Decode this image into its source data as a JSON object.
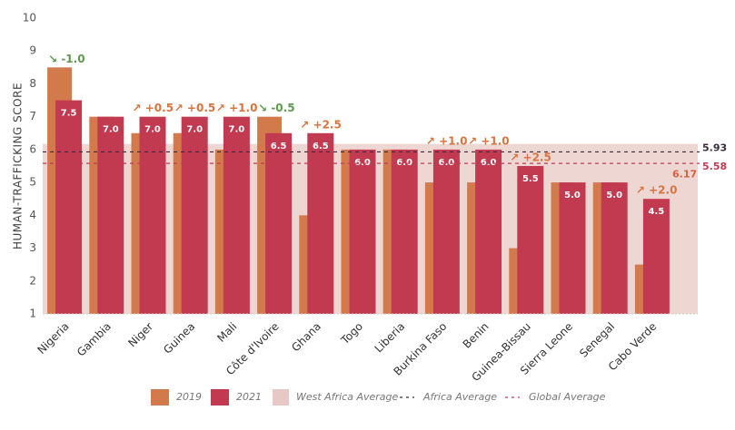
{
  "chart_data": {
    "type": "bar",
    "y_label": "HUMAN-TRAFFICKING SCORE",
    "categories": [
      "Nigeria",
      "Gambia",
      "Niger",
      "Guinea",
      "Mali",
      "Côte d'Ivoire",
      "Ghana",
      "Togo",
      "Liberia",
      "Burkina Faso",
      "Benin",
      "Guinea-Bissau",
      "Sierra Leone",
      "Senegal",
      "Cabo Verde"
    ],
    "series": [
      {
        "name": "2019",
        "color": "#d27a4c",
        "values": [
          8.5,
          7.0,
          6.5,
          6.5,
          6.0,
          7.0,
          4.0,
          6.0,
          6.0,
          5.0,
          5.0,
          3.0,
          5.0,
          5.0,
          2.5
        ]
      },
      {
        "name": "2021",
        "color": "#c23a50",
        "values": [
          7.5,
          7.0,
          7.0,
          7.0,
          7.0,
          6.5,
          6.5,
          6.0,
          6.0,
          6.0,
          6.0,
          5.5,
          5.0,
          5.0,
          4.5
        ],
        "value_labels": [
          "7.5",
          "7.0",
          "7.0",
          "7.0",
          "7.0",
          "6.5",
          "6.5",
          "6.0",
          "6.0",
          "6.0",
          "6.0",
          "5.5",
          "5.0",
          "5.0",
          "4.5"
        ]
      }
    ],
    "change_labels": [
      "↘ -1.0",
      null,
      "↗ +0.5",
      "↗ +0.5",
      "↗ +1.0",
      "↘ -0.5",
      "↗ +2.5",
      null,
      null,
      "↗ +1.0",
      "↗ +1.0",
      "↗ +2.5",
      null,
      null,
      "↗ +2.0"
    ],
    "up_color": "#d8743f",
    "down_color": "#5e9a4c",
    "averages": [
      {
        "name": "West Africa Average",
        "value": 6.17,
        "label": "6.17",
        "color": "#e8c8c4",
        "label_color": "#d4603f",
        "style": "area"
      },
      {
        "name": "Africa Average",
        "value": 5.93,
        "label": "5.93",
        "color": "#3c2a3c",
        "label_color": "#3c2a3c",
        "style": "dashed"
      },
      {
        "name": "Global Average",
        "value": 5.58,
        "label": "5.58",
        "color": "#c23a50",
        "label_color": "#c23a50",
        "style": "dashed"
      }
    ],
    "ylim": [
      1,
      10
    ],
    "yticks": [
      1,
      2,
      3,
      4,
      5,
      6,
      7,
      8,
      9,
      10
    ]
  }
}
